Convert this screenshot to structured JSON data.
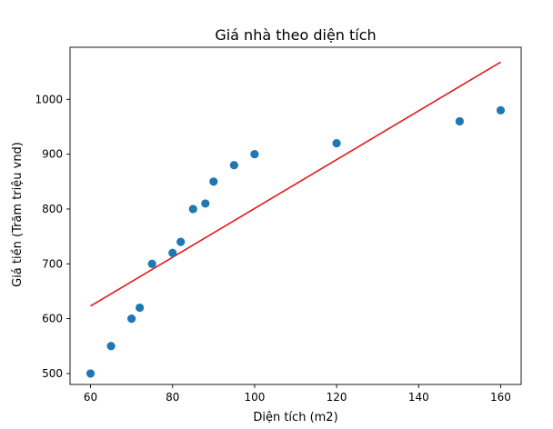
{
  "chart_data": {
    "type": "scatter",
    "title": "Giá nhà theo diện tích",
    "xlabel": "Diện tích (m2)",
    "ylabel": "Giá tiền (Trăm triệu vnd)",
    "xlim": [
      55,
      165
    ],
    "ylim": [
      480,
      1095
    ],
    "x_ticks": [
      60,
      80,
      100,
      120,
      140,
      160
    ],
    "y_ticks": [
      500,
      600,
      700,
      800,
      900,
      1000
    ],
    "grid": false,
    "series": [
      {
        "type": "scatter",
        "color": "#1f77b4",
        "x": [
          60,
          65,
          70,
          72,
          75,
          80,
          82,
          85,
          88,
          90,
          95,
          100,
          120,
          150,
          160
        ],
        "y": [
          500,
          550,
          600,
          620,
          700,
          720,
          740,
          800,
          810,
          850,
          880,
          900,
          920,
          960,
          980
        ]
      },
      {
        "type": "line",
        "color": "#e31a1c",
        "x": [
          60,
          160
        ],
        "y": [
          623,
          1068
        ]
      }
    ]
  }
}
